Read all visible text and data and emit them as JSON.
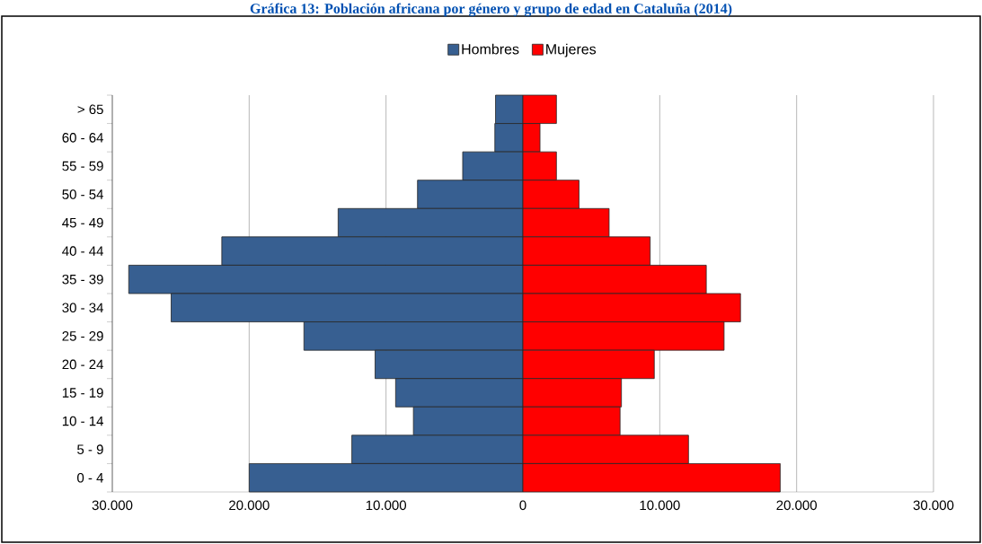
{
  "chart_data": {
    "type": "bar",
    "orientation": "horizontal",
    "stacked": true,
    "title": "Gráfica 13: Población africana por género y grupo de edad en Cataluña (2014)",
    "categories": [
      "> 65",
      "60 - 64",
      "55 - 59",
      "50 - 54",
      "45 - 49",
      "40 - 44",
      "35 - 39",
      "30 - 34",
      "25 - 29",
      "20 - 24",
      "15 - 19",
      "10 - 14",
      "5 - 9",
      "0 - 4"
    ],
    "series": [
      {
        "name": "Hombres",
        "color": "#375f91",
        "values": [
          -2000,
          -2050,
          -4400,
          -7700,
          -13500,
          -22000,
          -28800,
          -25700,
          -16000,
          -10800,
          -9300,
          -8000,
          -12500,
          -20000
        ]
      },
      {
        "name": "Mujeres",
        "color": "#ff0000",
        "values": [
          2450,
          1250,
          2450,
          4100,
          6300,
          9300,
          13400,
          15900,
          14700,
          9600,
          7200,
          7100,
          12100,
          18800
        ]
      }
    ],
    "xlim": [
      -30000,
      30000
    ],
    "xticks": [
      {
        "value": -30000,
        "label": "30.000"
      },
      {
        "value": -20000,
        "label": "20.000"
      },
      {
        "value": -10000,
        "label": "10.000"
      },
      0,
      {
        "value": 10000,
        "label": "10.000"
      },
      {
        "value": 20000,
        "label": "20.000"
      },
      {
        "value": 30000,
        "label": "30.000"
      }
    ],
    "grid": "x",
    "legend": "top"
  }
}
